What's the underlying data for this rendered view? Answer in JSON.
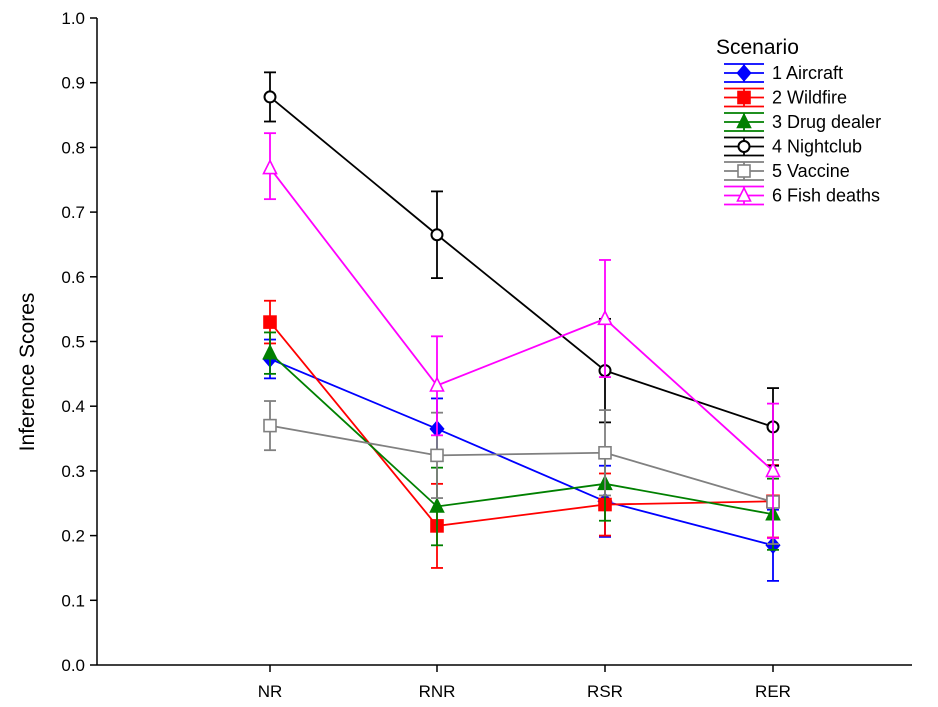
{
  "chart_data": {
    "type": "line",
    "title": "",
    "xlabel": "",
    "ylabel": "Inference Scores",
    "categories": [
      "NR",
      "RNR",
      "RSR",
      "RER"
    ],
    "ylim": [
      0.0,
      1.0
    ],
    "yticks": [
      "0.0",
      "0.1",
      "0.2",
      "0.3",
      "0.4",
      "0.5",
      "0.6",
      "0.7",
      "0.8",
      "0.9",
      "1.0"
    ],
    "grid": false,
    "legend": {
      "title": "Scenario",
      "placement": "top-right"
    },
    "series": [
      {
        "name": "1 Aircraft",
        "color": "#0000ff",
        "marker": "diamond-filled",
        "values": [
          0.473,
          0.365,
          0.253,
          0.185
        ],
        "err_low": [
          0.443,
          0.318,
          0.198,
          0.13
        ],
        "err_high": [
          0.503,
          0.412,
          0.308,
          0.24
        ]
      },
      {
        "name": "2 Wildfire",
        "color": "#ff0000",
        "marker": "square-filled",
        "values": [
          0.53,
          0.215,
          0.248,
          0.253
        ],
        "err_low": [
          0.497,
          0.15,
          0.2,
          0.197
        ],
        "err_high": [
          0.563,
          0.28,
          0.296,
          0.309
        ]
      },
      {
        "name": "3 Drug dealer",
        "color": "#008000",
        "marker": "triangle-filled",
        "values": [
          0.482,
          0.245,
          0.28,
          0.233
        ],
        "err_low": [
          0.45,
          0.185,
          0.223,
          0.178
        ],
        "err_high": [
          0.514,
          0.305,
          0.337,
          0.288
        ]
      },
      {
        "name": "4 Nightclub",
        "color": "#000000",
        "marker": "circle-open",
        "values": [
          0.878,
          0.665,
          0.455,
          0.368
        ],
        "err_low": [
          0.84,
          0.598,
          0.375,
          0.308
        ],
        "err_high": [
          0.916,
          0.732,
          0.535,
          0.428
        ]
      },
      {
        "name": "5 Vaccine",
        "color": "#808080",
        "marker": "square-open",
        "values": [
          0.37,
          0.324,
          0.328,
          0.252
        ],
        "err_low": [
          0.332,
          0.258,
          0.262,
          0.187
        ],
        "err_high": [
          0.408,
          0.39,
          0.394,
          0.317
        ]
      },
      {
        "name": "6 Fish deaths",
        "color": "#ff00ff",
        "marker": "triangle-open",
        "values": [
          0.768,
          0.432,
          0.535,
          0.3
        ],
        "err_low": [
          0.72,
          0.355,
          0.445,
          0.196
        ],
        "err_high": [
          0.822,
          0.508,
          0.626,
          0.404
        ]
      }
    ]
  }
}
